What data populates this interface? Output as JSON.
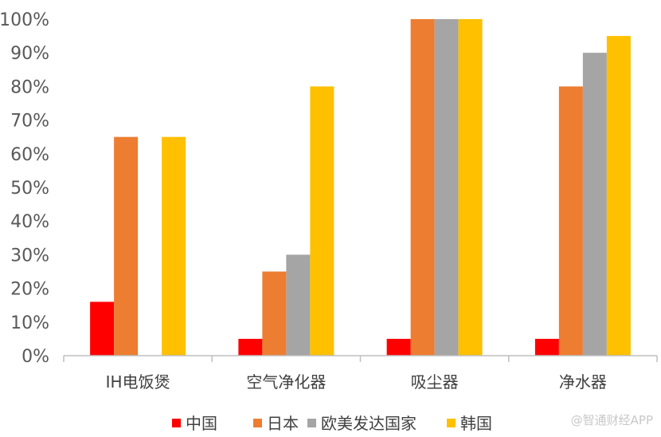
{
  "chart_data": {
    "type": "bar",
    "title": "",
    "xlabel": "",
    "ylabel": "",
    "categories": [
      "IH电饭煲",
      "空气净化器",
      "吸尘器",
      "净水器"
    ],
    "series": [
      {
        "name": "中国",
        "color": "#ff0000",
        "values": [
          16,
          5,
          5,
          5
        ]
      },
      {
        "name": "日本",
        "color": "#ed7d31",
        "values": [
          65,
          25,
          100,
          80
        ]
      },
      {
        "name": "欧美发达国家",
        "color": "#a5a5a5",
        "values": [
          0,
          30,
          100,
          90
        ]
      },
      {
        "name": "韩国",
        "color": "#ffc000",
        "values": [
          65,
          80,
          100,
          95
        ]
      }
    ],
    "ylim": [
      0,
      100
    ],
    "yticks": [
      "0%",
      "10%",
      "20%",
      "30%",
      "40%",
      "50%",
      "60%",
      "70%",
      "80%",
      "90%",
      "100%"
    ],
    "grid": false,
    "legend_position": "bottom"
  },
  "watermark": "@智通财经APP"
}
